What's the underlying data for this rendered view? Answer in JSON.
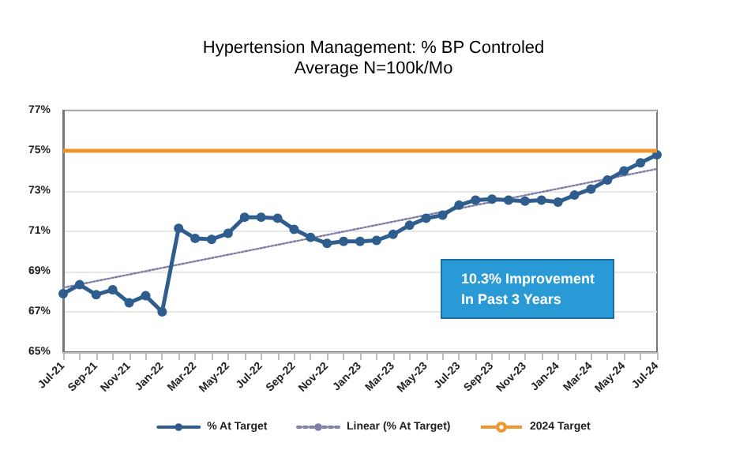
{
  "chart_data": {
    "type": "line",
    "title": "Hypertension Management: % BP Controled",
    "subtitle": "Average N=100k/Mo",
    "categories": [
      "Jul-21",
      null,
      "Sep-21",
      null,
      "Nov-21",
      null,
      "Jan-22",
      null,
      "Mar-22",
      null,
      "May-22",
      null,
      "Jul-22",
      null,
      "Sep-22",
      null,
      "Nov-22",
      null,
      "Jan-23",
      null,
      "Mar-23",
      null,
      "May-23",
      null,
      "Jul-23",
      null,
      "Sep-23",
      null,
      "Nov-23",
      null,
      "Jan-24",
      null,
      "Mar-24",
      null,
      "May-24",
      null,
      "Jul-24"
    ],
    "series": [
      {
        "name": "% At Target",
        "color": "#2e5d8e",
        "marker": "circle",
        "values": [
          67.9,
          68.35,
          67.85,
          68.1,
          67.45,
          67.8,
          67.0,
          71.15,
          70.65,
          70.6,
          70.9,
          71.7,
          71.7,
          71.65,
          71.1,
          70.7,
          70.4,
          70.5,
          70.5,
          70.55,
          70.85,
          71.3,
          71.65,
          71.8,
          72.3,
          72.55,
          72.6,
          72.55,
          72.5,
          72.55,
          72.45,
          72.8,
          73.1,
          73.55,
          74.0,
          74.4,
          74.8
        ]
      },
      {
        "name": "Linear (% At Target)",
        "type": "line",
        "color": "#7f7fa8",
        "line_style": "dotted",
        "marker": "none",
        "x": [
          "Jul-21",
          "Jul-24"
        ],
        "values": [
          68.2,
          74.1
        ]
      }
    ],
    "ref_lines": [
      {
        "axis": "y",
        "value": 75,
        "label": "2024 Target",
        "color": "#f0962e"
      }
    ],
    "ylim": [
      65,
      77
    ],
    "yticks": [
      {
        "value": 65,
        "label": "65%"
      },
      {
        "value": 67,
        "label": "67%"
      },
      {
        "value": 69,
        "label": "69%"
      },
      {
        "value": 71,
        "label": "71%"
      },
      {
        "value": 73,
        "label": "73%"
      },
      {
        "value": 75,
        "label": "75%"
      },
      {
        "value": 77,
        "label": "77%"
      }
    ],
    "grid": "y",
    "legend": "bottom",
    "annotations": [
      "10.3% Improvement\nIn Past 3 Years"
    ]
  }
}
